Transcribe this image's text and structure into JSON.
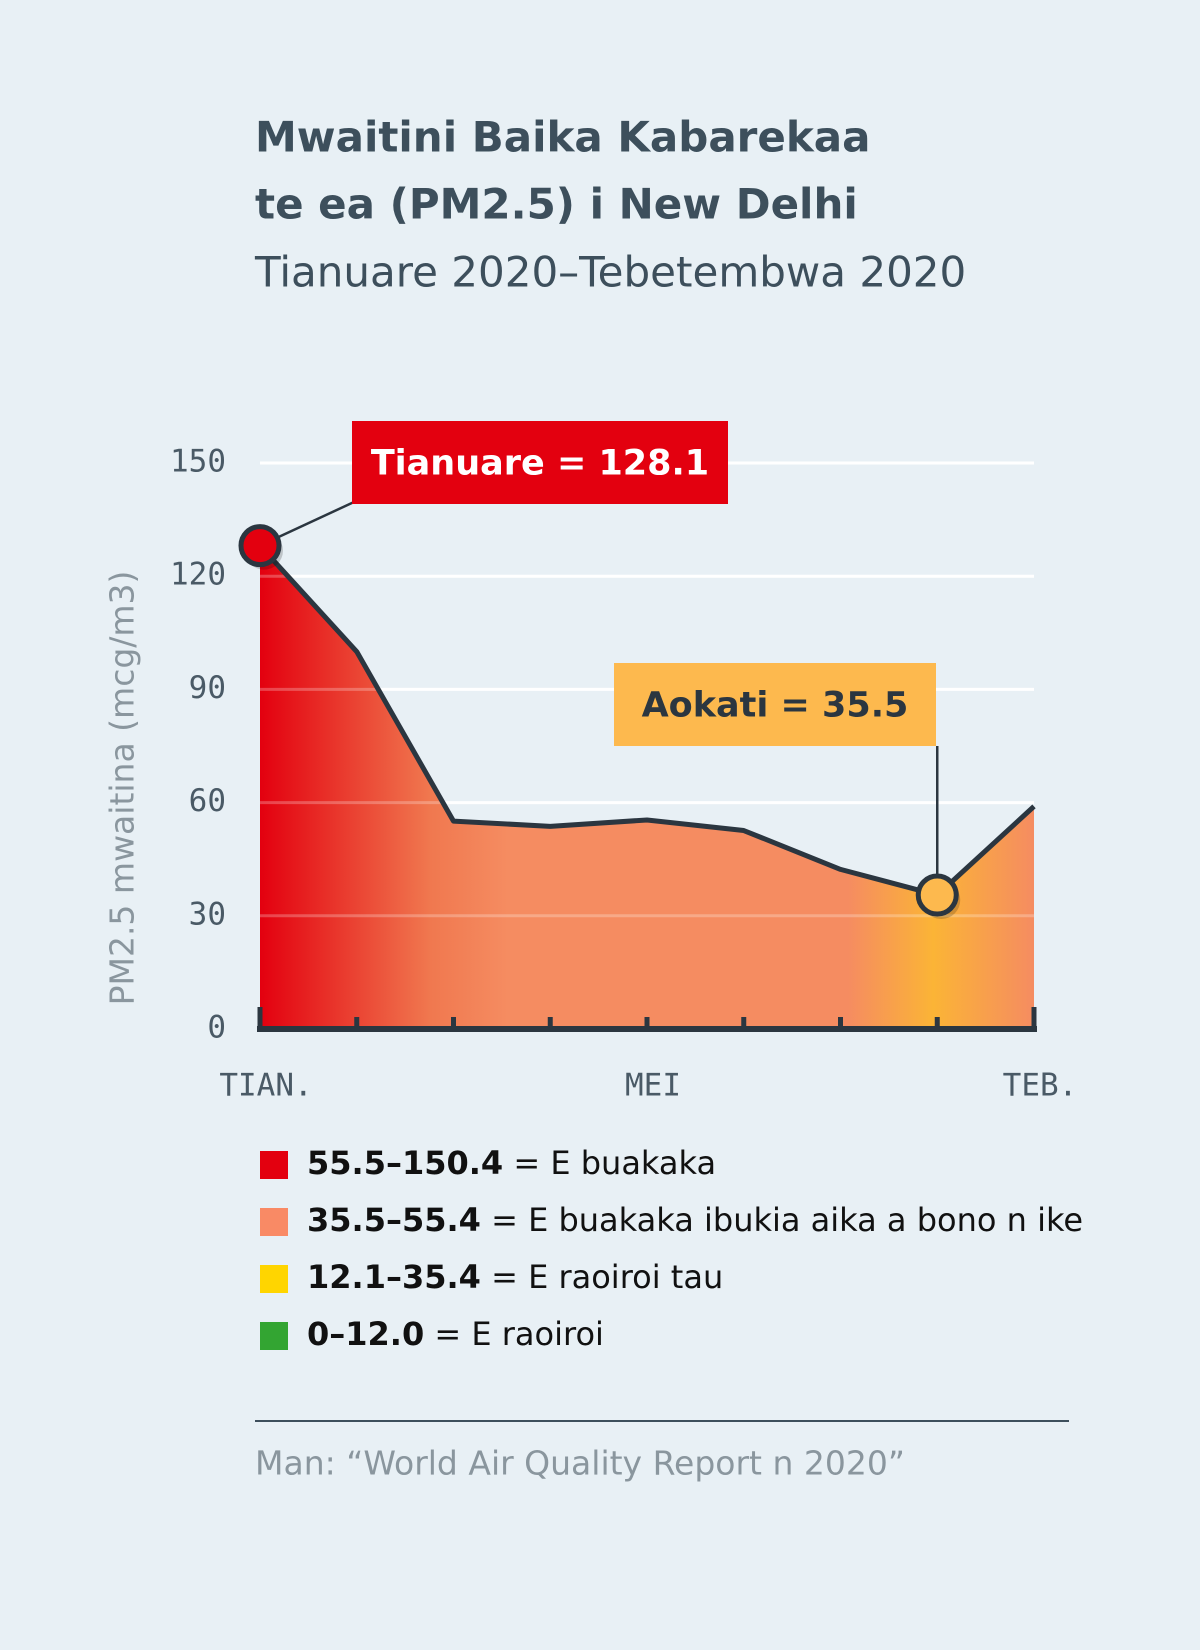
{
  "chart_data": {
    "type": "area",
    "title_lines": [
      "Mwaitini Baika Kabarekaa",
      "te ea (PM2.5) i New Delhi"
    ],
    "subtitle": "Tianuare 2020–Tebetembwa 2020",
    "y_label": "PM2.5 mwaitina (mcg/m3)",
    "categories": [
      "TIAN.",
      null,
      null,
      null,
      "MEI",
      null,
      null,
      null,
      "TEB."
    ],
    "values": [
      128.1,
      100,
      55.1,
      53.7,
      55.4,
      52.6,
      42.3,
      35.5,
      59
    ],
    "ylim": [
      0,
      150
    ],
    "yticks": [
      0,
      30,
      60,
      90,
      120,
      150
    ],
    "grid": true,
    "line_color": "#2b3640",
    "annotations": [
      {
        "text": "Tianuare = 128.1",
        "color": "#e3000f"
      },
      {
        "text": "Aokati = 35.5",
        "color": "#fdb94e"
      }
    ],
    "legend": [
      {
        "range": "55.5–150.4",
        "label": "= E buakaka",
        "color": "#e3000f"
      },
      {
        "range": "35.5–55.4",
        "label": "= E buakaka ibukia aika a bono n ike",
        "color": "#f98a65"
      },
      {
        "range": "12.1–35.4",
        "label": "= E raoiroi tau",
        "color": "#ffd500"
      },
      {
        "range": "0–12.0",
        "label": "= E raoiroi",
        "color": "#33a532"
      }
    ],
    "source": "Man: “World Air Quality Report n 2020”"
  }
}
